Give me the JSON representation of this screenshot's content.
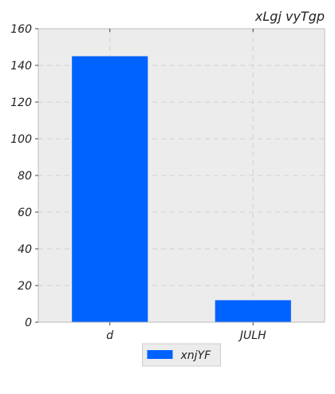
{
  "chart_data": {
    "type": "bar",
    "title": "xLgj  vyTgp",
    "title_align": "right",
    "xlabel": "",
    "ylabel": "",
    "categories": [
      "d",
      "JULH"
    ],
    "series": [
      {
        "name": "xnjYF",
        "values": [
          145,
          12
        ],
        "color": "#0062ff"
      }
    ],
    "ylim": [
      0,
      160
    ],
    "yticks": [
      0,
      20,
      40,
      60,
      80,
      100,
      120,
      140,
      160
    ],
    "grid": true,
    "grid_style": "dashed",
    "legend_position": "bottom-center",
    "plot_background": "#ececec",
    "grid_color": "#d0d0d0",
    "axis_color": "#bcbcbc"
  }
}
